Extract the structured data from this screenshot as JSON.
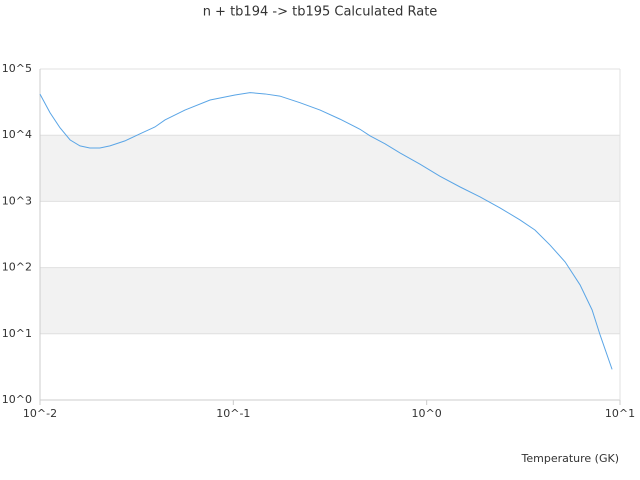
{
  "chart_data": {
    "type": "line",
    "title": "n + tb194 -> tb195 Calculated Rate",
    "x_label": "Temperature (GK)",
    "log_x": true,
    "log_y": true,
    "grid": true,
    "band_color": "#f2f2f2",
    "xlim": [
      0.01,
      10
    ],
    "ylim": [
      1,
      100000
    ],
    "xticks": [
      {
        "value": 0.01,
        "label": "10^-2"
      },
      {
        "value": 0.1,
        "label": "10^-1"
      },
      {
        "value": 1,
        "label": "10^0"
      },
      {
        "value": 10,
        "label": "10^1"
      }
    ],
    "yticks": [
      {
        "value": 1,
        "label": "10^0"
      },
      {
        "value": 10,
        "label": "10^1"
      },
      {
        "value": 100,
        "label": "10^2"
      },
      {
        "value": 1000,
        "label": "10^3"
      },
      {
        "value": 10000,
        "label": "10^4"
      },
      {
        "value": 100000,
        "label": "10^5"
      }
    ],
    "series": [
      {
        "color": "#5aa5e6",
        "x": [
          0.01,
          0.01127,
          0.0127,
          0.0143,
          0.0161,
          0.0181,
          0.0204,
          0.023,
          0.0275,
          0.0329,
          0.0393,
          0.0443,
          0.0562,
          0.0758,
          0.102,
          0.122,
          0.146,
          0.174,
          0.221,
          0.281,
          0.356,
          0.452,
          0.509,
          0.609,
          0.728,
          0.924,
          1.17,
          1.49,
          1.89,
          2.39,
          3.04,
          3.63,
          4.34,
          5.2,
          6.21,
          7.17,
          7.89,
          9.1
        ],
        "values": [
          41700,
          21800,
          12900,
          8500,
          6900,
          6400,
          6400,
          6900,
          8200,
          10500,
          13300,
          17000,
          24000,
          34000,
          40500,
          44000,
          42000,
          39000,
          31000,
          24000,
          17500,
          12300,
          9800,
          7400,
          5400,
          3650,
          2400,
          1650,
          1170,
          800,
          525,
          370,
          220,
          122,
          55,
          23,
          9.6,
          2.9
        ]
      }
    ]
  }
}
